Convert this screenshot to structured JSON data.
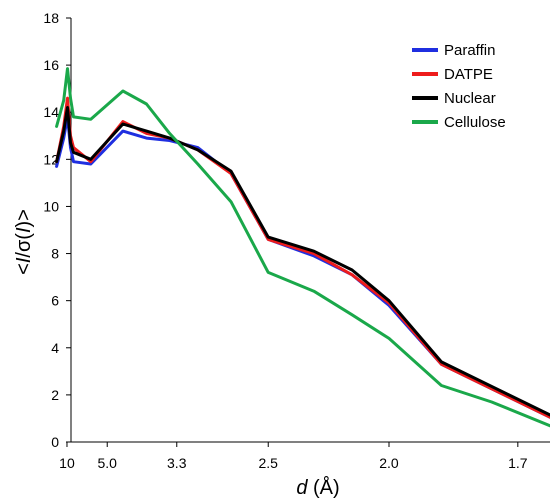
{
  "chart_data": {
    "type": "line",
    "title": "",
    "xlabel": {
      "var": "d",
      "unit": " (Å)"
    },
    "ylabel": {
      "open": "<",
      "num": "I",
      "mid": "/σ(",
      "num2": "I",
      "close": ")>"
    },
    "ylim": [
      0,
      18
    ],
    "yticks": [
      0,
      2,
      4,
      6,
      8,
      10,
      12,
      14,
      16,
      18
    ],
    "xlim": [
      0.013,
      0.37
    ],
    "xscale": "reciprocal (1/d^2)",
    "xticks": [
      {
        "label": "10",
        "d": 10
      },
      {
        "label": "5.0",
        "d": 5.0
      },
      {
        "label": "3.3",
        "d": 3.3
      },
      {
        "label": "2.5",
        "d": 2.5
      },
      {
        "label": "2.0",
        "d": 2.0
      },
      {
        "label": "1.7",
        "d": 1.7
      }
    ],
    "legend_position": "top-right",
    "grid": false,
    "series": [
      {
        "name": "Paraffin",
        "color": "#1f2fe0",
        "points": [
          [
            20.9,
            11.7
          ],
          [
            11.5,
            12.9
          ],
          [
            9.8,
            13.8
          ],
          [
            8.9,
            12.5
          ],
          [
            8.2,
            11.9
          ],
          [
            6.0,
            11.8
          ],
          [
            4.4,
            13.2
          ],
          [
            3.8,
            12.9
          ],
          [
            3.4,
            12.8
          ],
          [
            3.05,
            12.5
          ],
          [
            2.75,
            11.4
          ],
          [
            2.5,
            8.6
          ],
          [
            2.27,
            7.9
          ],
          [
            2.12,
            7.1
          ],
          [
            2.0,
            5.8
          ],
          [
            1.86,
            3.3
          ],
          [
            1.64,
            1.0
          ]
        ]
      },
      {
        "name": "DATPE",
        "color": "#ee1c1c",
        "points": [
          [
            20.9,
            11.9
          ],
          [
            11.5,
            13.4
          ],
          [
            9.8,
            14.6
          ],
          [
            8.9,
            13.0
          ],
          [
            8.2,
            12.5
          ],
          [
            6.0,
            11.9
          ],
          [
            4.4,
            13.6
          ],
          [
            3.8,
            13.1
          ],
          [
            3.4,
            12.9
          ],
          [
            3.05,
            12.4
          ],
          [
            2.75,
            11.4
          ],
          [
            2.5,
            8.6
          ],
          [
            2.27,
            8.0
          ],
          [
            2.12,
            7.1
          ],
          [
            2.0,
            5.9
          ],
          [
            1.86,
            3.3
          ],
          [
            1.64,
            1.0
          ]
        ]
      },
      {
        "name": "Nuclear",
        "color": "#000000",
        "points": [
          [
            20.9,
            11.9
          ],
          [
            11.5,
            13.2
          ],
          [
            9.8,
            14.2
          ],
          [
            8.9,
            12.7
          ],
          [
            8.2,
            12.3
          ],
          [
            6.0,
            12.0
          ],
          [
            4.4,
            13.5
          ],
          [
            3.8,
            13.2
          ],
          [
            3.4,
            12.9
          ],
          [
            3.05,
            12.4
          ],
          [
            2.75,
            11.5
          ],
          [
            2.5,
            8.7
          ],
          [
            2.27,
            8.1
          ],
          [
            2.12,
            7.3
          ],
          [
            2.0,
            6.0
          ],
          [
            1.86,
            3.4
          ],
          [
            1.64,
            1.1
          ]
        ]
      },
      {
        "name": "Cellulose",
        "color": "#1aa84a",
        "points": [
          [
            20.9,
            13.4
          ],
          [
            11.5,
            14.5
          ],
          [
            9.8,
            15.85
          ],
          [
            8.9,
            14.6
          ],
          [
            8.2,
            13.8
          ],
          [
            6.0,
            13.7
          ],
          [
            4.4,
            14.9
          ],
          [
            3.8,
            14.35
          ],
          [
            3.4,
            13.1
          ],
          [
            3.05,
            11.8
          ],
          [
            2.75,
            10.2
          ],
          [
            2.5,
            7.2
          ],
          [
            2.27,
            6.4
          ],
          [
            2.12,
            5.4
          ],
          [
            2.0,
            4.4
          ],
          [
            1.86,
            2.4
          ],
          [
            1.75,
            1.7
          ],
          [
            1.64,
            0.65
          ]
        ]
      }
    ]
  }
}
